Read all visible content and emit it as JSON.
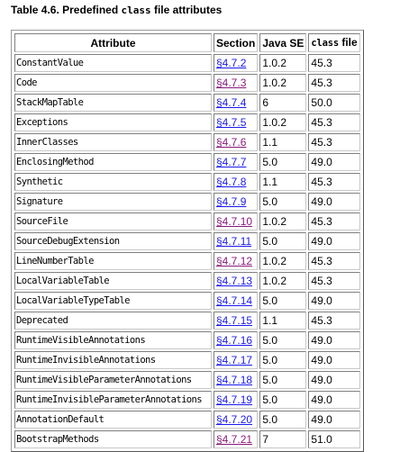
{
  "caption": {
    "prefix": "Table 4.6. Predefined ",
    "code": "class",
    "suffix": " file attributes"
  },
  "headers": {
    "attribute": "Attribute",
    "section": "Section",
    "java_se": "Java SE",
    "class_code": "class",
    "class_suffix": " file"
  },
  "colors": {
    "link": "#1a1aee",
    "visited_link": "#8a1a7a"
  },
  "rows": [
    {
      "attribute": "ConstantValue",
      "section": "§4.7.2",
      "visited": false,
      "java_se": "1.0.2",
      "class_file": "45.3"
    },
    {
      "attribute": "Code",
      "section": "§4.7.3",
      "visited": true,
      "java_se": "1.0.2",
      "class_file": "45.3"
    },
    {
      "attribute": "StackMapTable",
      "section": "§4.7.4",
      "visited": false,
      "java_se": "6",
      "class_file": "50.0"
    },
    {
      "attribute": "Exceptions",
      "section": "§4.7.5",
      "visited": false,
      "java_se": "1.0.2",
      "class_file": "45.3"
    },
    {
      "attribute": "InnerClasses",
      "section": "§4.7.6",
      "visited": true,
      "java_se": "1.1",
      "class_file": "45.3"
    },
    {
      "attribute": "EnclosingMethod",
      "section": "§4.7.7",
      "visited": false,
      "java_se": "5.0",
      "class_file": "49.0"
    },
    {
      "attribute": "Synthetic",
      "section": "§4.7.8",
      "visited": false,
      "java_se": "1.1",
      "class_file": "45.3"
    },
    {
      "attribute": "Signature",
      "section": "§4.7.9",
      "visited": false,
      "java_se": "5.0",
      "class_file": "49.0"
    },
    {
      "attribute": "SourceFile",
      "section": "§4.7.10",
      "visited": true,
      "java_se": "1.0.2",
      "class_file": "45.3"
    },
    {
      "attribute": "SourceDebugExtension",
      "section": "§4.7.11",
      "visited": false,
      "java_se": "5.0",
      "class_file": "49.0"
    },
    {
      "attribute": "LineNumberTable",
      "section": "§4.7.12",
      "visited": true,
      "java_se": "1.0.2",
      "class_file": "45.3"
    },
    {
      "attribute": "LocalVariableTable",
      "section": "§4.7.13",
      "visited": false,
      "java_se": "1.0.2",
      "class_file": "45.3"
    },
    {
      "attribute": "LocalVariableTypeTable",
      "section": "§4.7.14",
      "visited": false,
      "java_se": "5.0",
      "class_file": "49.0"
    },
    {
      "attribute": "Deprecated",
      "section": "§4.7.15",
      "visited": false,
      "java_se": "1.1",
      "class_file": "45.3"
    },
    {
      "attribute": "RuntimeVisibleAnnotations",
      "section": "§4.7.16",
      "visited": false,
      "java_se": "5.0",
      "class_file": "49.0"
    },
    {
      "attribute": "RuntimeInvisibleAnnotations",
      "section": "§4.7.17",
      "visited": false,
      "java_se": "5.0",
      "class_file": "49.0"
    },
    {
      "attribute": "RuntimeVisibleParameterAnnotations",
      "section": "§4.7.18",
      "visited": false,
      "java_se": "5.0",
      "class_file": "49.0"
    },
    {
      "attribute": "RuntimeInvisibleParameterAnnotations",
      "section": "§4.7.19",
      "visited": false,
      "java_se": "5.0",
      "class_file": "49.0"
    },
    {
      "attribute": "AnnotationDefault",
      "section": "§4.7.20",
      "visited": false,
      "java_se": "5.0",
      "class_file": "49.0"
    },
    {
      "attribute": "BootstrapMethods",
      "section": "§4.7.21",
      "visited": true,
      "java_se": "7",
      "class_file": "51.0"
    }
  ]
}
